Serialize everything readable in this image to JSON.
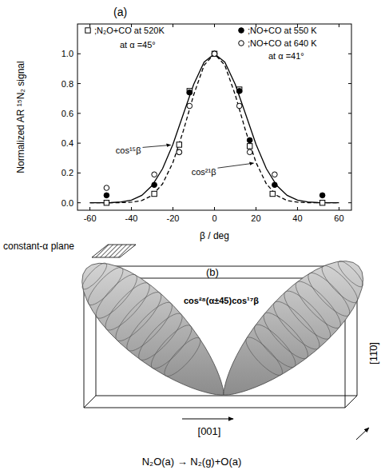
{
  "chart_data": {
    "type": "scatter",
    "title": "(a)",
    "x_label": "β / deg",
    "y_label": "Normalized AR ¹⁵N₂ signal",
    "xlim": [
      -66,
      66
    ],
    "xticks": [
      -60,
      -40,
      -20,
      0,
      20,
      40,
      60
    ],
    "ylim": [
      -0.05,
      1.2
    ],
    "yticks": [
      {
        "value": 0,
        "label": "0.0"
      },
      {
        "value": 0.2,
        "label": "0.2"
      },
      {
        "value": 0.4,
        "label": "0.4"
      },
      {
        "value": 0.6,
        "label": "0.6"
      },
      {
        "value": 0.8,
        "label": "0.8"
      },
      {
        "value": 1.0,
        "label": "1.0"
      }
    ],
    "grid": false,
    "legend": "top",
    "annotations": [
      "at α =45°",
      "at α =41°"
    ],
    "series": [
      {
        "name": ";N₂O+CO at 520K",
        "type": "scatter",
        "marker": "square-open",
        "color": "#000000",
        "x": [
          -52,
          -29,
          -17,
          -12,
          0,
          12,
          17,
          28,
          52
        ],
        "values": [
          0.0,
          0.06,
          0.39,
          0.75,
          1.0,
          0.76,
          0.38,
          0.06,
          0.0
        ]
      },
      {
        "name": ";NO+CO at 550 K",
        "type": "scatter",
        "marker": "circle",
        "color": "#000000",
        "x": [
          -52,
          -29,
          -17,
          -12,
          0,
          12,
          17,
          29,
          52
        ],
        "values": [
          0.05,
          0.12,
          0.34,
          0.74,
          1.0,
          0.75,
          0.42,
          0.12,
          0.05
        ]
      },
      {
        "name": ";NO+CO at 640 K",
        "type": "scatter",
        "marker": "circle-open",
        "color": "#000000",
        "x": [
          -52,
          -29,
          -17,
          -12,
          0,
          12,
          17,
          29
        ],
        "values": [
          0.1,
          0.19,
          0.34,
          0.65,
          1.0,
          0.65,
          0.34,
          0.19
        ]
      },
      {
        "name": "cos¹⁵β",
        "type": "line",
        "line_style": "solid",
        "color": "#000000",
        "x": [
          -60,
          -55,
          -50,
          -45,
          -40,
          -35,
          -30,
          -25,
          -20,
          -15,
          -10,
          -5,
          0,
          5,
          10,
          15,
          20,
          25,
          30,
          35,
          40,
          45,
          50,
          55,
          60
        ],
        "values": [
          0.0,
          0.0,
          0.001,
          0.006,
          0.018,
          0.05,
          0.116,
          0.229,
          0.393,
          0.595,
          0.795,
          0.944,
          1.0,
          0.944,
          0.795,
          0.595,
          0.393,
          0.229,
          0.116,
          0.05,
          0.018,
          0.006,
          0.001,
          0.0,
          0.0
        ]
      },
      {
        "name": "cos²¹β",
        "type": "line",
        "line_style": "dashed",
        "color": "#000000",
        "x": [
          -60,
          -55,
          -50,
          -45,
          -40,
          -35,
          -30,
          -25,
          -20,
          -15,
          -10,
          -5,
          0,
          5,
          10,
          15,
          20,
          25,
          30,
          35,
          40,
          45,
          50,
          55,
          60
        ],
        "values": [
          0.0,
          0.0,
          0.0,
          0.001,
          0.004,
          0.015,
          0.049,
          0.127,
          0.271,
          0.483,
          0.725,
          0.923,
          1.0,
          0.923,
          0.725,
          0.483,
          0.271,
          0.127,
          0.049,
          0.015,
          0.004,
          0.001,
          0.0,
          0.0,
          0.0
        ]
      }
    ]
  },
  "diagram": {
    "label": "(b)",
    "plane_label": "constant-α plane",
    "formula": "cos²⁸(α±45)cos¹⁷β",
    "axis_horizontal": "[001]",
    "axis_depth": "[11̄0]",
    "reaction": "N₂O(a) → N₂(g)+O(a)"
  }
}
